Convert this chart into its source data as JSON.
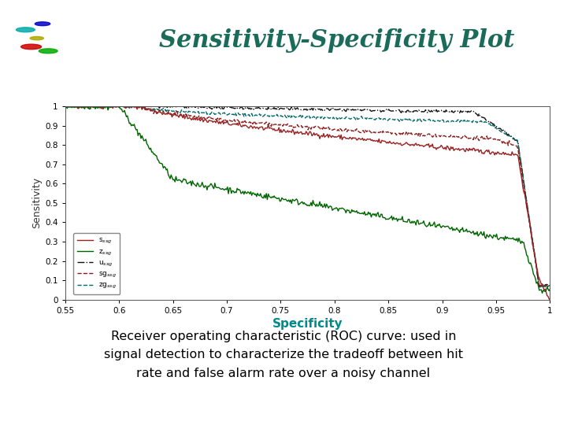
{
  "title": "Sensitivity-Specificity Plot",
  "title_color": "#1a6b5a",
  "xlabel": "Specificity",
  "ylabel": "Sensitivity",
  "xlabel_color": "#008b8b",
  "xlim": [
    0.55,
    1.0
  ],
  "ylim": [
    0.0,
    1.0
  ],
  "xticks": [
    0.55,
    0.6,
    0.65,
    0.7,
    0.75,
    0.8,
    0.85,
    0.9,
    0.95,
    1.0
  ],
  "yticks": [
    0.0,
    0.1,
    0.2,
    0.3,
    0.4,
    0.5,
    0.6,
    0.7,
    0.8,
    0.9,
    1.0
  ],
  "bg_color": "#ffffff",
  "teal_bar_color": "#008080",
  "purple_bar_color": "#990099",
  "legend_labels": [
    "s$_{ssg}$",
    "z$_{ssg}$",
    "u$_{ssg}$",
    "sg$_{ssg}$",
    "zg$_{ssg}$"
  ],
  "footer_text": "Receiver operating characteristic (ROC) curve: used in\nsignal detection to characterize the tradeoff between hit\nrate and false alarm rate over a noisy channel",
  "footer_color": "#000000"
}
